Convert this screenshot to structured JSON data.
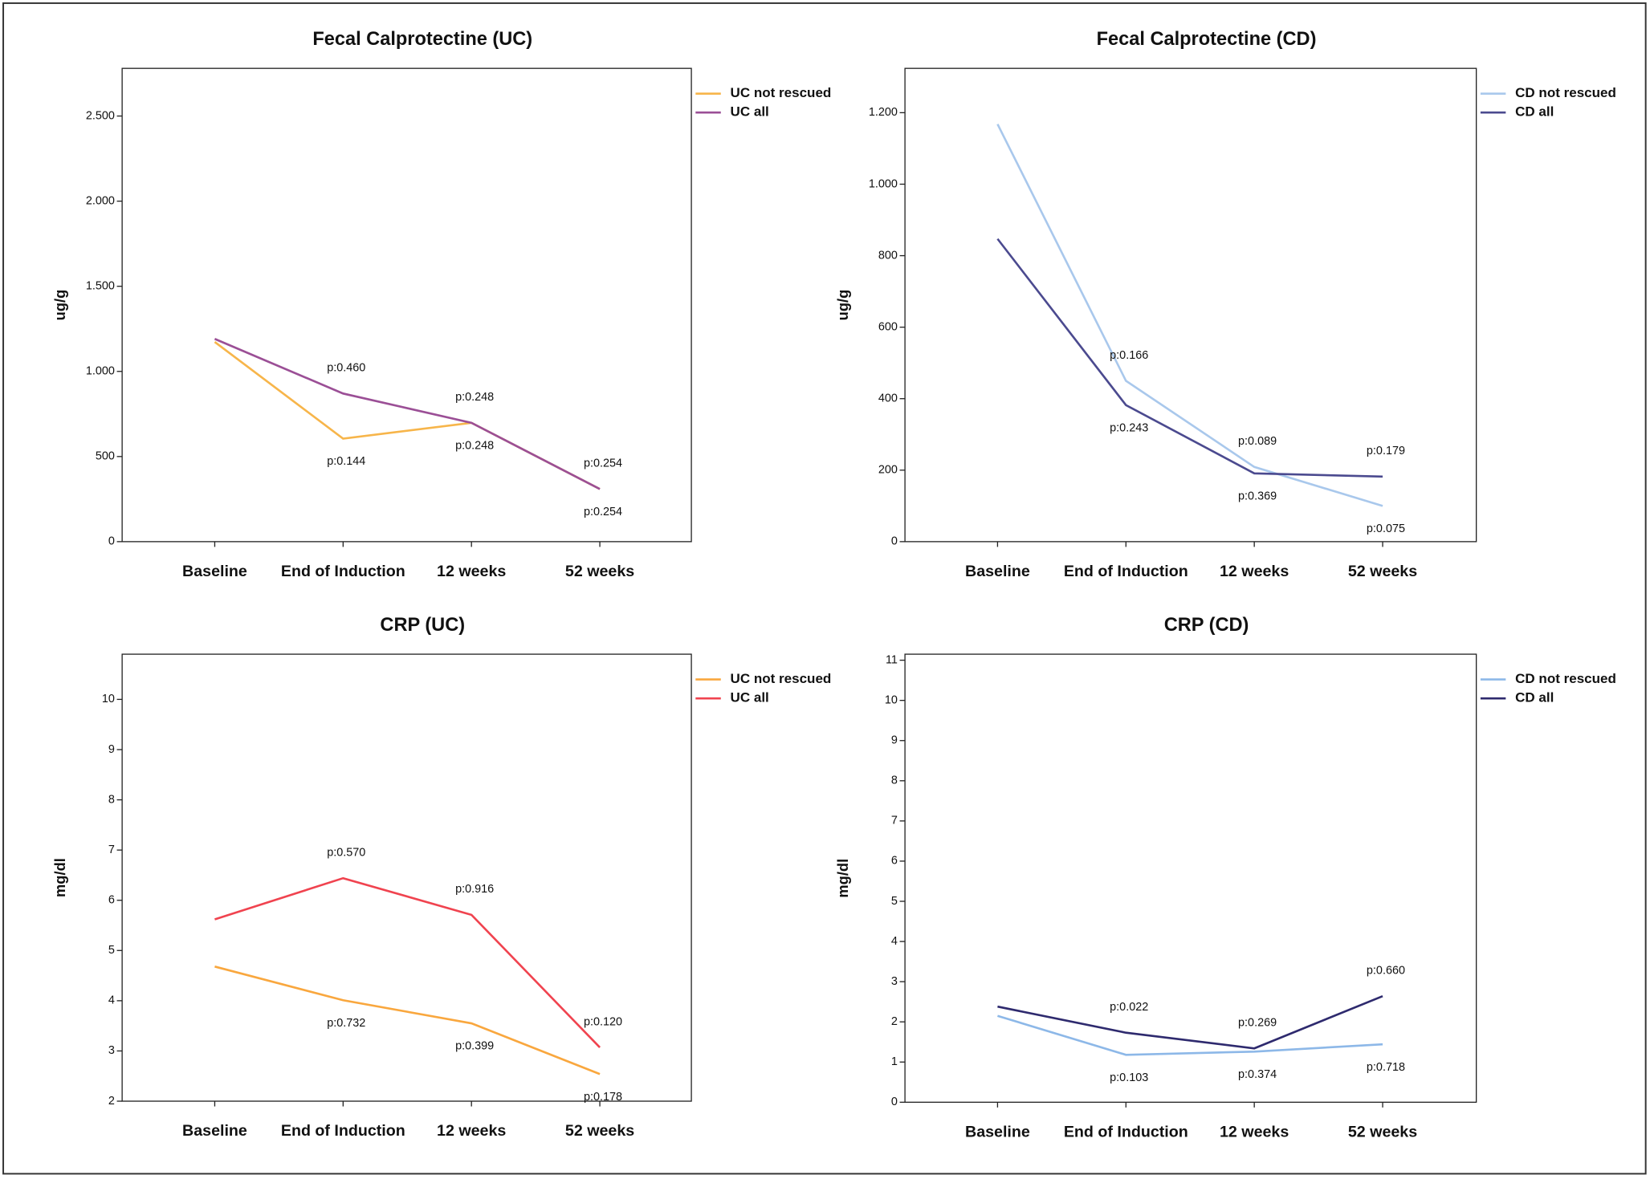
{
  "chart_data": [
    {
      "type": "line",
      "title": "Fecal Calprotectine (UC)",
      "y_label": "ug/g",
      "categories": [
        "Baseline",
        "End of Induction",
        "12 weeks",
        "52 weeks"
      ],
      "ylim": [
        0,
        2780
      ],
      "yticks": [
        0,
        500,
        {
          "value": 1000,
          "label": "1.000"
        },
        {
          "value": 1500,
          "label": "1.500"
        },
        {
          "value": 2000,
          "label": "2.000"
        },
        {
          "value": 2500,
          "label": "2.500"
        }
      ],
      "series": [
        {
          "name": "UC not rescued",
          "color": "#f7b54a",
          "values": [
            1173,
            605,
            698,
            309
          ],
          "p_values": [
            null,
            "p:0.144",
            "p:0.248",
            "p:0.254"
          ]
        },
        {
          "name": "UC all",
          "color": "#9b4f96",
          "values": [
            1191,
            870,
            698,
            309
          ],
          "p_values": [
            null,
            "p:0.460",
            "p:0.248",
            "p:0.254"
          ]
        }
      ]
    },
    {
      "type": "line",
      "title": "Fecal Calprotectine (CD)",
      "y_label": "ug/g",
      "categories": [
        "Baseline",
        "End of Induction",
        "12 weeks",
        "52 weeks"
      ],
      "ylim": [
        0,
        1324
      ],
      "yticks": [
        0,
        200,
        400,
        600,
        800,
        {
          "value": 1000,
          "label": "1.000"
        },
        {
          "value": 1200,
          "label": "1.200"
        }
      ],
      "series": [
        {
          "name": "CD not rescued",
          "color": "#a9c8ec",
          "values": [
            1168,
            450,
            209,
            100
          ],
          "p_values": [
            null,
            "p:0.166",
            "p:0.089",
            "p:0.075"
          ]
        },
        {
          "name": "CD all",
          "color": "#4b4a8f",
          "values": [
            847,
            382,
            191,
            182
          ],
          "p_values": [
            null,
            "p:0.243",
            "p:0.369",
            "p:0.179"
          ]
        }
      ]
    },
    {
      "type": "line",
      "title": "CRP (UC)",
      "y_label": "mg/dl",
      "categories": [
        "Baseline",
        "End of Induction",
        "12 weeks",
        "52 weeks"
      ],
      "ylim": [
        2,
        10.9
      ],
      "yticks": [
        2,
        3,
        4,
        5,
        6,
        7,
        8,
        9,
        10
      ],
      "series": [
        {
          "name": "UC not rescued",
          "color": "#f9a73e",
          "values": [
            4.68,
            4.01,
            3.55,
            2.54
          ],
          "p_values": [
            null,
            "p:0.732",
            "p:0.399",
            "p:0.178"
          ]
        },
        {
          "name": "UC all",
          "color": "#f0434f",
          "values": [
            5.62,
            6.44,
            5.71,
            3.07
          ],
          "p_values": [
            null,
            "p:0.570",
            "p:0.916",
            "p:0.120"
          ]
        }
      ]
    },
    {
      "type": "line",
      "title": "CRP (CD)",
      "y_label": "mg/dl",
      "categories": [
        "Baseline",
        "End of Induction",
        "12 weeks",
        "52 weeks"
      ],
      "ylim": [
        0,
        11.15
      ],
      "yticks": [
        0,
        1,
        2,
        3,
        4,
        5,
        6,
        7,
        8,
        9,
        10,
        11
      ],
      "series": [
        {
          "name": "CD not rescued",
          "color": "#8db8e8",
          "values": [
            2.15,
            1.18,
            1.26,
            1.44
          ],
          "p_values": [
            null,
            "p:0.103",
            "p:0.374",
            "p:0.718"
          ]
        },
        {
          "name": "CD all",
          "color": "#2e2a6e",
          "values": [
            2.38,
            1.73,
            1.34,
            2.64
          ],
          "p_values": [
            null,
            "p:0.022",
            "p:0.269",
            "p:0.660"
          ]
        }
      ]
    }
  ]
}
